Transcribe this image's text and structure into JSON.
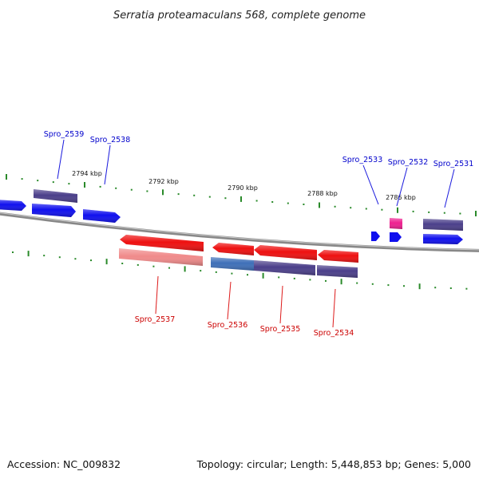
{
  "title": "Serratia proteamaculans 568, complete genome",
  "footer": {
    "accession": "Accession: NC_009832",
    "summary": "Topology: circular; Length: 5,448,853 bp; Genes: 5,000"
  },
  "colors": {
    "forward_gene": "#1010ee",
    "forward_rna": "#4b3f8a",
    "reverse_gene": "#ee1010",
    "reverse_rna": "#f08a8a",
    "highlight": "#ee2090",
    "blue_label": "#0000cc",
    "red_label": "#cc0000",
    "ticks": "#2a8a2a",
    "backbone": "#888888"
  },
  "scale_labels": [
    "2794 kbp",
    "2792 kbp",
    "2790 kbp",
    "2788 kbp",
    "2786 kbp"
  ],
  "forward_labels": [
    "Spro_2539",
    "Spro_2538",
    "Spro_2533",
    "Spro_2532",
    "Spro_2531"
  ],
  "reverse_labels": [
    "Spro_2537",
    "Spro_2536",
    "Spro_2535",
    "Spro_2534"
  ]
}
